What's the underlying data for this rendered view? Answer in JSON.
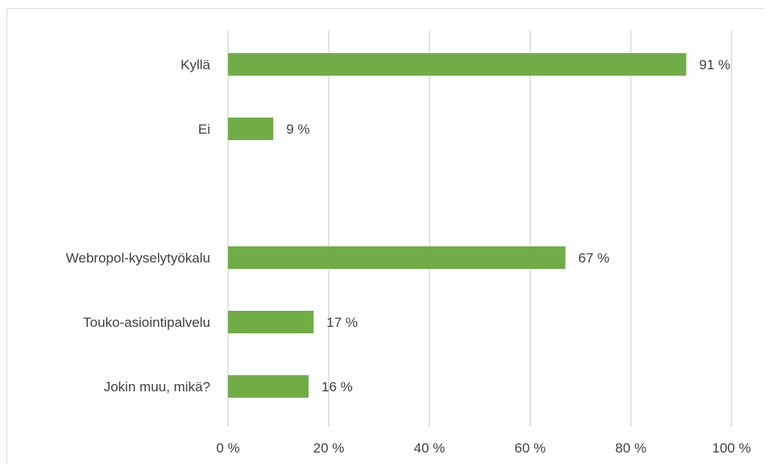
{
  "chart_data": {
    "type": "bar",
    "orientation": "horizontal",
    "categories": [
      "Kyllä",
      "Ei",
      "",
      "Webropol-kyselytyökalu",
      "Touko-asiointipalvelu",
      "Jokin muu, mikä?"
    ],
    "values": [
      91,
      9,
      null,
      67,
      17,
      16
    ],
    "data_labels": [
      "91 %",
      "9 %",
      "",
      "67 %",
      "17 %",
      "16 %"
    ],
    "x_ticks": [
      0,
      20,
      40,
      60,
      80,
      100
    ],
    "x_tick_labels": [
      "0 %",
      "20 %",
      "40 %",
      "60 %",
      "80 %",
      "100 %"
    ],
    "xlim": [
      0,
      100
    ],
    "grid": "vertical",
    "bar_color": "#70ad47",
    "grid_color": "#d9d9d9",
    "text_color": "#404040",
    "title": "",
    "xlabel": "",
    "ylabel": ""
  }
}
